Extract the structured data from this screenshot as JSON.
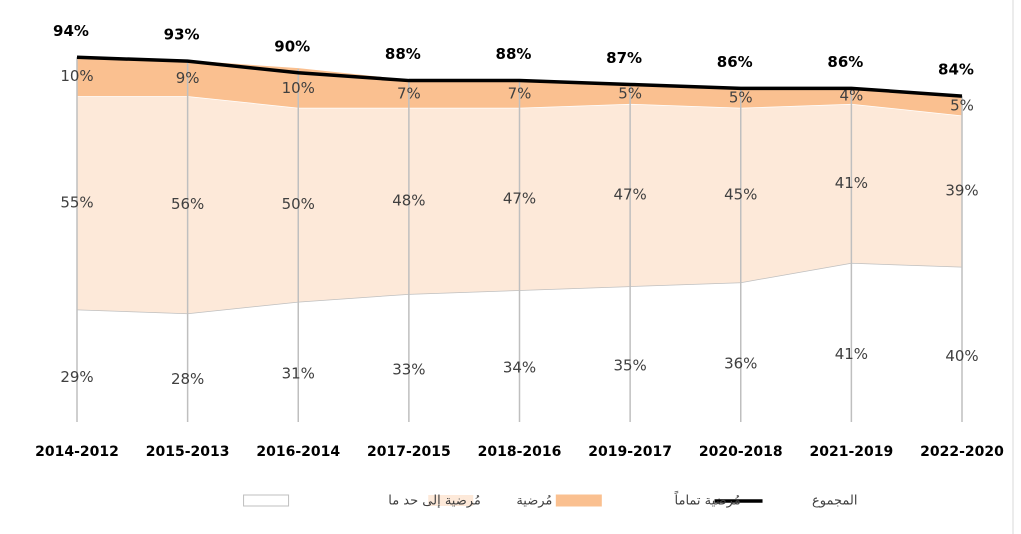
{
  "chart_data": {
    "type": "area",
    "categories": [
      "2014-2012",
      "2015-2013",
      "2016-2014",
      "2017-2015",
      "2018-2016",
      "2019-2017",
      "2020-2018",
      "2021-2019",
      "2022-2020"
    ],
    "stacked": true,
    "ylim": [
      0,
      100
    ],
    "legend": "bottom",
    "series": [
      {
        "name": "مُرضية إلى حد ما",
        "type": "area",
        "color": "#ffffff",
        "stroke": "#bfbfbf",
        "values": [
          29,
          28,
          31,
          33,
          34,
          35,
          36,
          41,
          40
        ],
        "value_labels": [
          "29%",
          "28%",
          "31%",
          "33%",
          "34%",
          "35%",
          "36%",
          "41%",
          "40%"
        ]
      },
      {
        "name": "مُرضية",
        "type": "area",
        "color": "#fde9d9",
        "stroke": "#ffffff",
        "values": [
          55,
          56,
          50,
          48,
          47,
          47,
          45,
          41,
          39
        ],
        "value_labels": [
          "55%",
          "56%",
          "50%",
          "48%",
          "47%",
          "47%",
          "45%",
          "41%",
          "39%"
        ]
      },
      {
        "name": "مُرضية تماماً",
        "type": "area",
        "color": "#fac090",
        "stroke": "#fac090",
        "values": [
          10,
          9,
          10,
          7,
          7,
          5,
          5,
          4,
          5
        ],
        "value_labels": [
          "10%",
          "9%",
          "10%",
          "7%",
          "7%",
          "5%",
          "5%",
          "4%",
          "5%"
        ]
      },
      {
        "name": "المجموع",
        "type": "line",
        "color": "#000000",
        "values": [
          94,
          93,
          90,
          88,
          88,
          87,
          86,
          86,
          84
        ],
        "value_labels": [
          "94%",
          "93%",
          "90%",
          "88%",
          "88%",
          "87%",
          "86%",
          "86%",
          "84%"
        ]
      }
    ]
  }
}
